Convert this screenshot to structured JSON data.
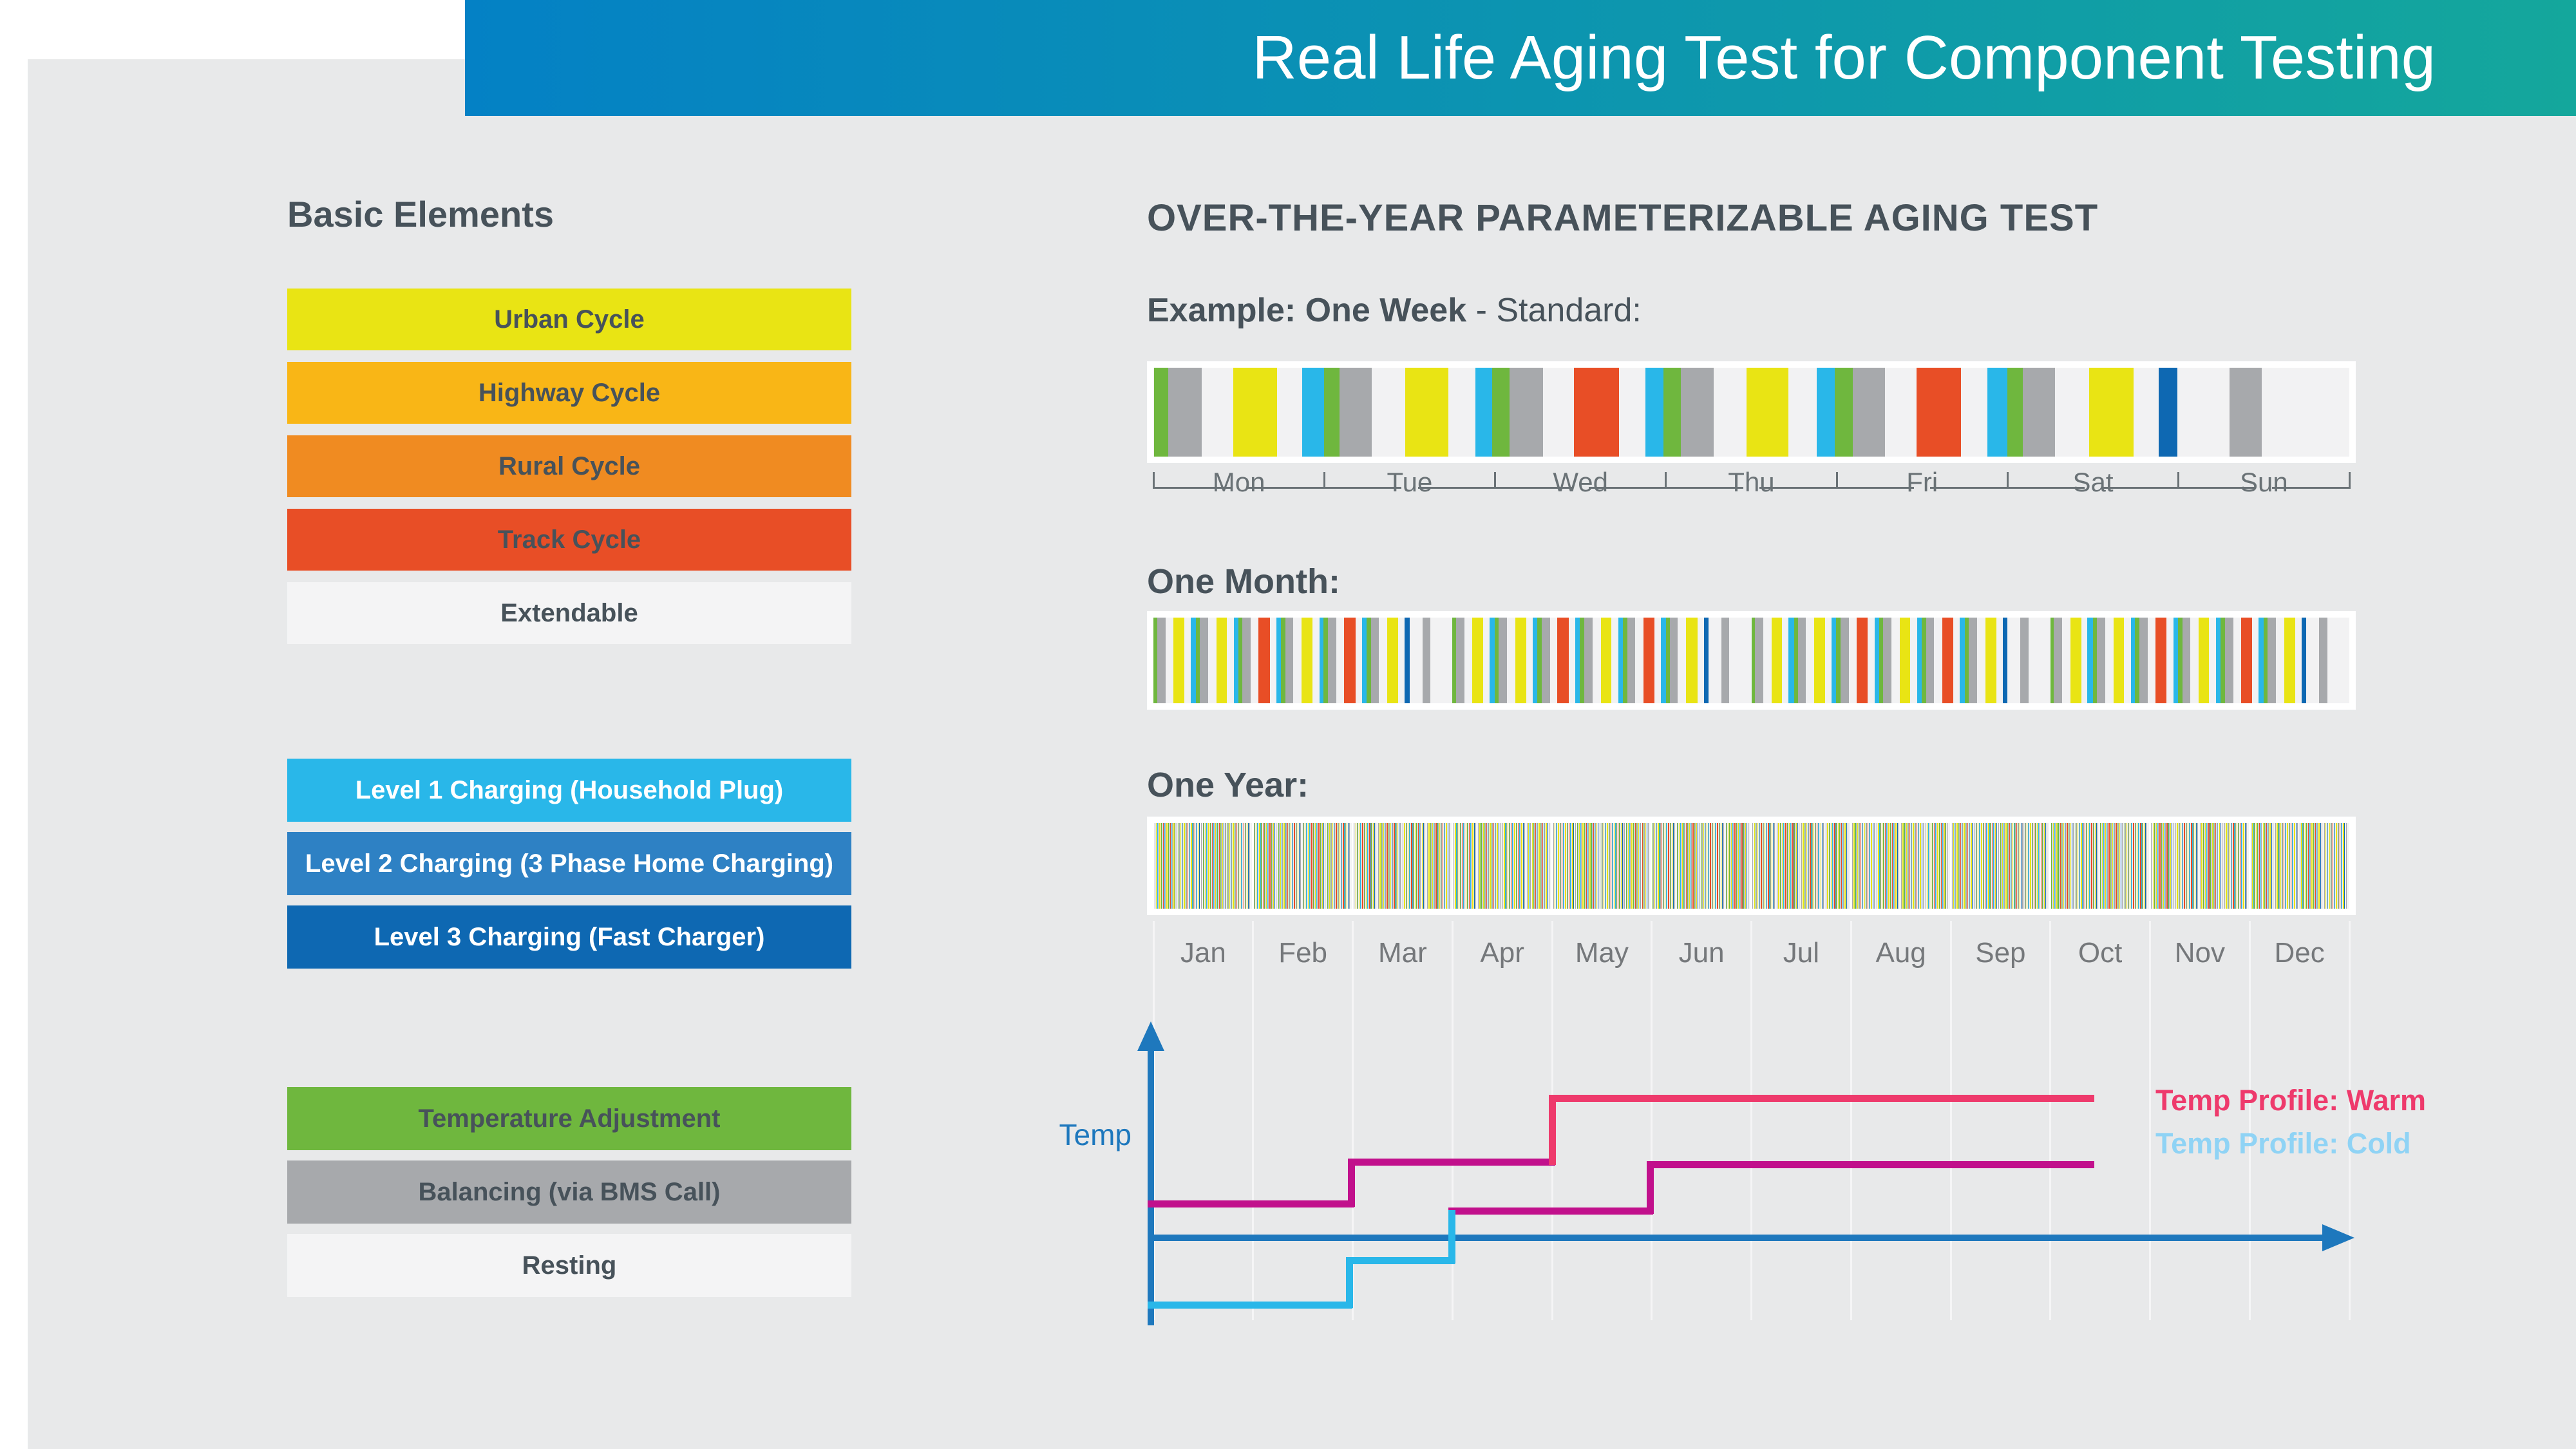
{
  "header": {
    "title": "Real Life Aging Test for Component Testing"
  },
  "palette": {
    "headerFrom": "#0481c5",
    "headerTo": "#14a79c",
    "panel": "#e8e9ea",
    "stripBg": "#f2f2f3",
    "slate": "#47525a",
    "labelGray": "#6a7276",
    "monthGray": "#75787b",
    "yellow": "#e9e414",
    "amber": "#f9b616",
    "orange": "#f08b21",
    "red": "#e84e26",
    "offwhite": "#f4f4f5",
    "cyan": "#29b7e9",
    "blue2": "#2e81c4",
    "blue3": "#0e68b2",
    "green": "#6fb73e",
    "gray": "#a7a9ac",
    "white": "#ffffff",
    "axis": "#1e78bd",
    "magenta": "#c1108c",
    "pink": "#ee3a6c",
    "coldLegend": "#8fd3f5"
  },
  "basic_elements": {
    "title": "Basic Elements",
    "groups": [
      {
        "items": [
          {
            "label": "Urban Cycle",
            "bg": "yellow",
            "fg": "slate"
          },
          {
            "label": "Highway Cycle",
            "bg": "amber",
            "fg": "slate"
          },
          {
            "label": "Rural Cycle",
            "bg": "orange",
            "fg": "slate"
          },
          {
            "label": "Track Cycle",
            "bg": "red",
            "fg": "slate"
          },
          {
            "label": "Extendable",
            "bg": "offwhite",
            "fg": "slate"
          }
        ]
      },
      {
        "items": [
          {
            "label": "Level 1 Charging (Household Plug)",
            "bg": "cyan",
            "fg": "white"
          },
          {
            "label": "Level 2 Charging (3 Phase Home Charging)",
            "bg": "blue2",
            "fg": "white"
          },
          {
            "label": "Level 3 Charging (Fast Charger)",
            "bg": "blue3",
            "fg": "white"
          }
        ]
      },
      {
        "items": [
          {
            "label": "Temperature Adjustment",
            "bg": "green",
            "fg": "slate"
          },
          {
            "label": "Balancing (via BMS Call)",
            "bg": "gray",
            "fg": "slate"
          },
          {
            "label": "Resting",
            "bg": "offwhite",
            "fg": "slate"
          }
        ]
      }
    ]
  },
  "right": {
    "heading": "OVER-THE-YEAR PARAMETERIZABLE AGING TEST",
    "example_prefix": "Example: One Week",
    "example_suffix": " - Standard:",
    "one_month": "One Month:",
    "one_year": "One Year:"
  },
  "week": {
    "days": [
      "Mon",
      "Tue",
      "Wed",
      "Thu",
      "Fri",
      "Sat",
      "Sun"
    ],
    "segments": [
      {
        "c": "green",
        "x": 0.05,
        "w": 1.18
      },
      {
        "c": "gray",
        "x": 1.23,
        "w": 2.79
      },
      {
        "c": "yellow",
        "x": 6.7,
        "w": 3.64
      },
      {
        "c": "cyan",
        "x": 12.43,
        "w": 1.82
      },
      {
        "c": "green",
        "x": 14.26,
        "w": 1.29
      },
      {
        "c": "gray",
        "x": 15.55,
        "w": 2.73
      },
      {
        "c": "yellow",
        "x": 21.06,
        "w": 3.59
      },
      {
        "c": "cyan",
        "x": 26.9,
        "w": 1.45
      },
      {
        "c": "green",
        "x": 28.35,
        "w": 1.45
      },
      {
        "c": "gray",
        "x": 29.8,
        "w": 2.79
      },
      {
        "c": "red",
        "x": 35.16,
        "w": 3.75
      },
      {
        "c": "cyan",
        "x": 41.16,
        "w": 1.5
      },
      {
        "c": "green",
        "x": 42.66,
        "w": 1.45
      },
      {
        "c": "gray",
        "x": 44.11,
        "w": 2.73
      },
      {
        "c": "yellow",
        "x": 49.62,
        "w": 3.48
      },
      {
        "c": "cyan",
        "x": 55.47,
        "w": 1.5
      },
      {
        "c": "green",
        "x": 56.97,
        "w": 1.5
      },
      {
        "c": "gray",
        "x": 58.47,
        "w": 2.68
      },
      {
        "c": "red",
        "x": 63.83,
        "w": 3.7
      },
      {
        "c": "cyan",
        "x": 69.72,
        "w": 1.66
      },
      {
        "c": "green",
        "x": 71.38,
        "w": 1.34
      },
      {
        "c": "gray",
        "x": 72.72,
        "w": 2.68
      },
      {
        "c": "yellow",
        "x": 78.24,
        "w": 3.7
      },
      {
        "c": "blue3",
        "x": 84.08,
        "w": 1.55
      },
      {
        "c": "gray",
        "x": 89.98,
        "w": 2.68
      }
    ]
  },
  "months": [
    "Jan",
    "Feb",
    "Mar",
    "Apr",
    "May",
    "Jun",
    "Jul",
    "Aug",
    "Sep",
    "Oct",
    "Nov",
    "Dec"
  ],
  "temp_chart": {
    "axis_label": "Temp",
    "legend": [
      {
        "label": "Temp Profile: Warm",
        "color": "pink"
      },
      {
        "label": "Temp Profile: Cold",
        "color": "coldLegend"
      }
    ],
    "lines": [
      {
        "name": "warm-low",
        "color": "magenta",
        "points": [
          [
            1787,
            1869
          ],
          [
            2098,
            1869
          ],
          [
            2098,
            1804
          ],
          [
            2410,
            1804
          ]
        ]
      },
      {
        "name": "warm-high",
        "color": "pink",
        "points": [
          [
            2410,
            1804
          ],
          [
            2410,
            1705
          ],
          [
            3247,
            1705
          ]
        ]
      },
      {
        "name": "warm-mid",
        "color": "magenta",
        "points": [
          [
            2254,
            1880
          ],
          [
            2562,
            1880
          ],
          [
            2562,
            1808
          ],
          [
            3247,
            1808
          ]
        ]
      },
      {
        "name": "cold",
        "color": "cyan",
        "points": [
          [
            1787,
            2026
          ],
          [
            2095,
            2026
          ],
          [
            2095,
            1957
          ],
          [
            2254,
            1957
          ],
          [
            2254,
            1884
          ]
        ]
      }
    ]
  }
}
